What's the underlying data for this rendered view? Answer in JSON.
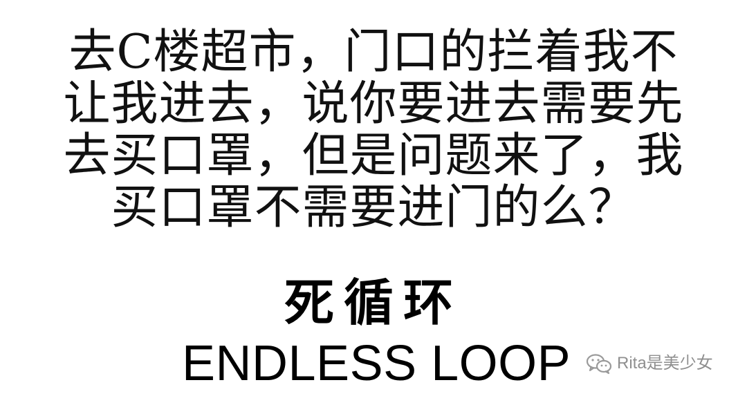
{
  "paragraph": {
    "lines": [
      "去C楼超市，门口的拦着我不",
      "让我进去，说你要进去需要先",
      "去买口罩，但是问题来了，我",
      "买口罩不需要进门的么？"
    ]
  },
  "title": {
    "chinese": "死循环",
    "english": "ENDLESS LOOP"
  },
  "watermark": {
    "text": "Rita是美少女",
    "icon": "wechat-icon",
    "color": "#8f8f8f"
  },
  "colors": {
    "background": "#ffffff",
    "text": "#111111"
  }
}
